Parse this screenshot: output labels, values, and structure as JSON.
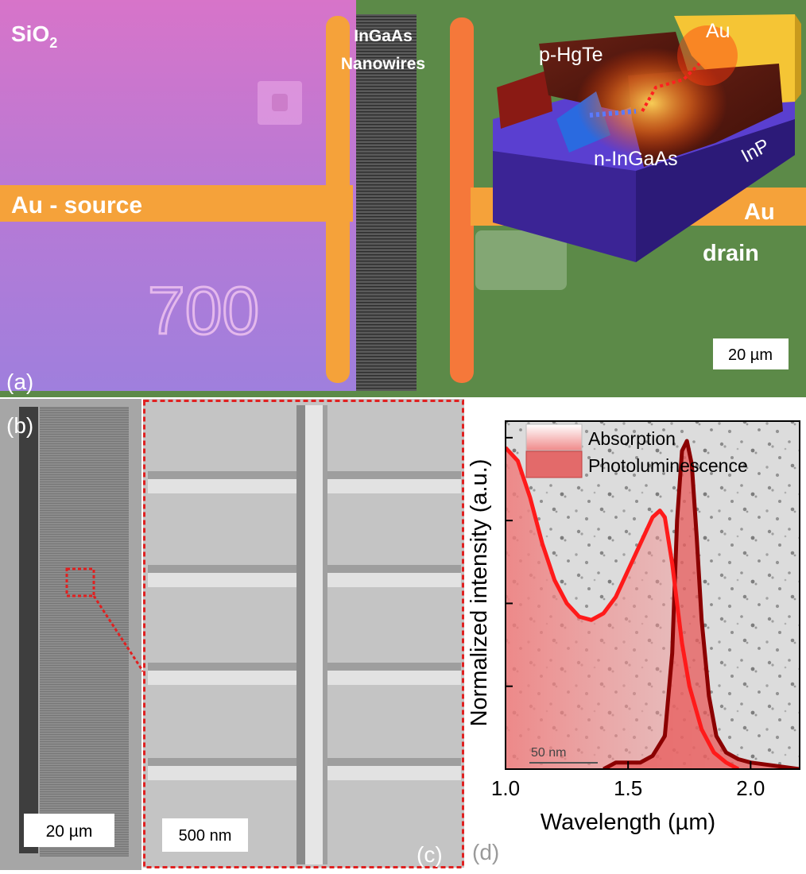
{
  "panel_a": {
    "tag": "(a)",
    "sio2_main": "SiO",
    "sio2_sub": "2",
    "nanowires_line1": "InGaAs",
    "nanowires_line2": "Nanowires",
    "au_source": "Au - source",
    "mark_700": "700",
    "inset_au": "Au",
    "inset_hgte": "p-HgTe",
    "inset_ingaas": "n-InGaAs",
    "inset_inp": "InP",
    "au_drain_line1": "Au",
    "au_drain_line2": "drain",
    "scale": "20 µm",
    "colors": {
      "sio2": "#c86fc8",
      "au": "#f5a23a",
      "substrate": "#5c8a48",
      "nanowires": "#4a4a4a",
      "inp": "#4b32b5",
      "hgte": "#5a1a12"
    }
  },
  "panel_b": {
    "tag": "(b)",
    "scale": "20 µm"
  },
  "panel_c": {
    "tag": "(c)",
    "scale": "500 nm",
    "frame_color": "#e02020"
  },
  "panel_d": {
    "tag": "(d)",
    "inset_scale": "50 nm",
    "chart_data": {
      "type": "area",
      "xlabel": "Wavelength (µm)",
      "ylabel": "Normalized intensity (a.u.)",
      "xlim": [
        1.0,
        2.2
      ],
      "ylim": [
        0,
        1.05
      ],
      "x_ticks": [
        "1.0",
        "1.5",
        "2.0"
      ],
      "legend_position": "top",
      "series": [
        {
          "name": "Absorption",
          "color": "#ff1a1a",
          "x": [
            1.0,
            1.05,
            1.1,
            1.15,
            1.2,
            1.25,
            1.3,
            1.35,
            1.4,
            1.45,
            1.5,
            1.55,
            1.6,
            1.63,
            1.65,
            1.68,
            1.7,
            1.72,
            1.75,
            1.8,
            1.85,
            1.9,
            1.95
          ],
          "y": [
            0.97,
            0.93,
            0.82,
            0.68,
            0.57,
            0.5,
            0.46,
            0.45,
            0.47,
            0.52,
            0.6,
            0.68,
            0.76,
            0.78,
            0.76,
            0.62,
            0.5,
            0.38,
            0.25,
            0.12,
            0.05,
            0.02,
            0.0
          ]
        },
        {
          "name": "Photoluminescence",
          "color": "#8b0000",
          "x": [
            1.4,
            1.45,
            1.5,
            1.55,
            1.6,
            1.65,
            1.68,
            1.7,
            1.72,
            1.74,
            1.76,
            1.78,
            1.8,
            1.83,
            1.86,
            1.9,
            1.95,
            2.0,
            2.1,
            2.2
          ],
          "y": [
            0.0,
            0.02,
            0.02,
            0.02,
            0.04,
            0.1,
            0.35,
            0.75,
            0.96,
            0.99,
            0.92,
            0.7,
            0.45,
            0.22,
            0.1,
            0.05,
            0.03,
            0.02,
            0.01,
            0.0
          ]
        }
      ]
    }
  }
}
